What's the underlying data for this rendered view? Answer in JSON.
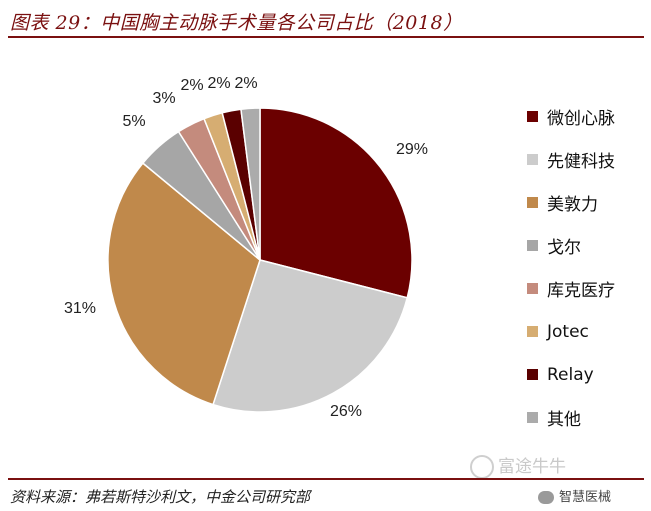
{
  "header": {
    "title": "图表 29：中国胸主动脉手术量各公司占比（2018）"
  },
  "footer": {
    "source": "资料来源：弗若斯特沙利文，中金公司研究部"
  },
  "watermark": {
    "text": "富途牛牛",
    "wechat_text": "智慧医械"
  },
  "chart_data": {
    "type": "pie",
    "title": "中国胸主动脉手术量各公司占比（2018）",
    "slices": [
      {
        "label": "微创心脉",
        "value": 29,
        "display": "29%",
        "color": "#6b0000"
      },
      {
        "label": "先健科技",
        "value": 26,
        "display": "26%",
        "color": "#cccccc"
      },
      {
        "label": "美敦力",
        "value": 31,
        "display": "31%",
        "color": "#c0894b"
      },
      {
        "label": "戈尔",
        "value": 5,
        "display": "5%",
        "color": "#a6a6a6"
      },
      {
        "label": "库克医疗",
        "value": 3,
        "display": "3%",
        "color": "#c48b7d"
      },
      {
        "label": "Jotec",
        "value": 2,
        "display": "2%",
        "color": "#d6ad72"
      },
      {
        "label": "Relay",
        "value": 2,
        "display": "2%",
        "color": "#5a0000"
      },
      {
        "label": "其他",
        "value": 2,
        "display": "2%",
        "color": "#ababab"
      }
    ],
    "legend_position": "right",
    "start_angle": "12 o'clock",
    "direction": "clockwise"
  }
}
